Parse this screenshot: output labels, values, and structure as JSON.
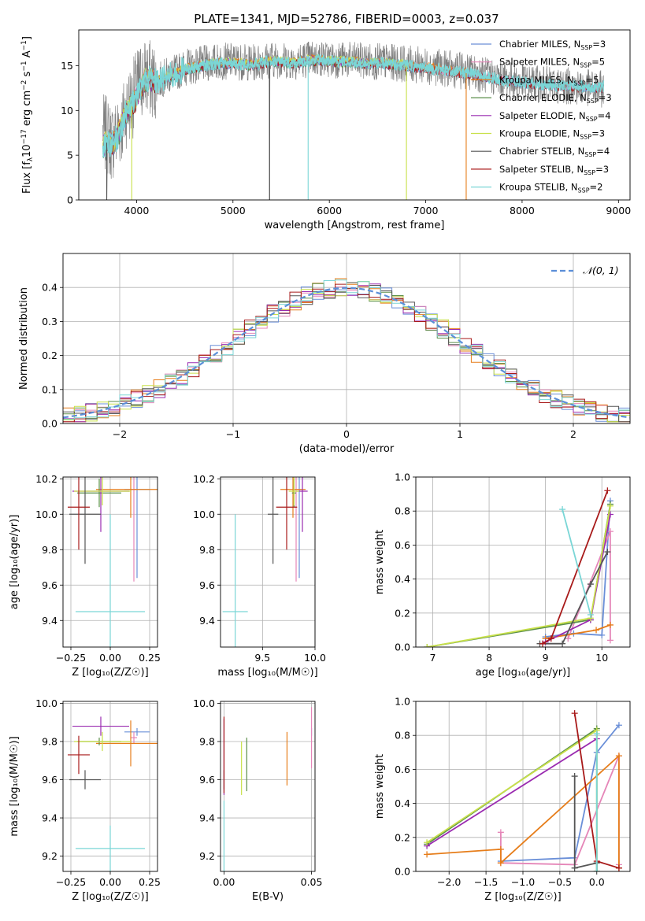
{
  "title": "PLATE=1341, MJD=52786, FIBERID=0003, z=0.037",
  "colors": {
    "Chabrier MILES": "#6a8fd8",
    "Salpeter MILES": "#e586b8",
    "Kroupa MILES": "#e67d1a",
    "Chabrier ELODIE": "#5b8f4a",
    "Salpeter ELODIE": "#9a2bb0",
    "Kroupa ELODIE": "#c8e04a",
    "Chabrier STELIB": "#555555",
    "Salpeter STELIB": "#a81a1a",
    "Kroupa STELIB": "#7ad6d6"
  },
  "chart_data": [
    {
      "id": "spectrum",
      "type": "line",
      "title": "PLATE=1341, MJD=52786, FIBERID=0003, z=0.037",
      "xlabel": "wavelength [Angstrom, rest frame]",
      "ylabel_parts": [
        "Flux [f",
        "λ",
        "10",
        "−17",
        " erg cm",
        "−2",
        " s",
        "−1",
        " A",
        "−1",
        "]"
      ],
      "xlim": [
        3400,
        9120
      ],
      "ylim": [
        0,
        19
      ],
      "xticks": [
        4000,
        5000,
        6000,
        7000,
        8000,
        9000
      ],
      "yticks": [
        0,
        5,
        10,
        15
      ],
      "grid": false,
      "legend_position": "upper-right",
      "legend": [
        {
          "label": "Chabrier MILES, N",
          "sub": "SSP",
          "suffix": "=3"
        },
        {
          "label": "Salpeter MILES, N",
          "sub": "SSP",
          "suffix": "=5"
        },
        {
          "label": "Kroupa MILES, N",
          "sub": "SSP",
          "suffix": "=5"
        },
        {
          "label": "Chabrier ELODIE, N",
          "sub": "SSP",
          "suffix": "=3"
        },
        {
          "label": "Salpeter ELODIE, N",
          "sub": "SSP",
          "suffix": "=4"
        },
        {
          "label": "Kroupa ELODIE, N",
          "sub": "SSP",
          "suffix": "=3"
        },
        {
          "label": "Chabrier STELIB, N",
          "sub": "SSP",
          "suffix": "=4"
        },
        {
          "label": "Salpeter STELIB, N",
          "sub": "SSP",
          "suffix": "=3"
        },
        {
          "label": "Kroupa STELIB, N",
          "sub": "SSP",
          "suffix": "=2"
        }
      ],
      "data_x": [
        3650,
        3700,
        3750,
        3800,
        3850,
        3900,
        3950,
        4000,
        4050,
        4100,
        4200,
        4300,
        4400,
        4500,
        4600,
        4700,
        4800,
        4900,
        5000,
        5100,
        5200,
        5300,
        5400,
        5500,
        5600,
        5700,
        5800,
        5900,
        6000,
        6200,
        6400,
        6600,
        6800,
        7000,
        7200,
        7400,
        7600,
        7800,
        8000,
        8200,
        8400,
        8600,
        8800
      ],
      "data_y": [
        7.5,
        7.0,
        6.5,
        7.5,
        8.5,
        10.5,
        11.0,
        12.5,
        13.5,
        13.8,
        13.0,
        13.8,
        14.2,
        14.8,
        15.0,
        15.2,
        15.4,
        15.5,
        15.5,
        15.4,
        15.3,
        15.5,
        15.7,
        15.6,
        15.5,
        15.6,
        15.8,
        15.8,
        15.7,
        15.6,
        15.5,
        15.4,
        15.2,
        15.0,
        14.7,
        14.4,
        14.0,
        13.5,
        13.2,
        12.9,
        12.8,
        12.6,
        12.4
      ],
      "model_x": [
        3650,
        3700,
        3750,
        3800,
        3850,
        3900,
        3950,
        4000,
        4050,
        4100,
        4200,
        4300,
        4400,
        4500,
        4600,
        4700,
        4800,
        4900,
        5000,
        5100,
        5200,
        5300,
        5400,
        5500,
        5600,
        5700,
        5800,
        5900,
        6000,
        6200,
        6400,
        6600,
        6800,
        7000,
        7200,
        7400,
        7600,
        7800,
        8000,
        8200,
        8400,
        8600,
        8800
      ],
      "model_y": [
        6.0,
        6.5,
        6.2,
        7.0,
        8.5,
        10.0,
        10.5,
        11.5,
        12.8,
        13.5,
        13.2,
        13.6,
        14.0,
        14.6,
        14.8,
        15.0,
        15.2,
        15.3,
        15.3,
        15.2,
        15.1,
        15.3,
        15.5,
        15.4,
        15.3,
        15.4,
        15.6,
        15.6,
        15.5,
        15.4,
        15.3,
        15.2,
        15.0,
        14.8,
        14.5,
        14.2,
        13.8,
        13.4,
        13.1,
        12.9,
        12.8,
        12.7,
        12.6
      ],
      "mask_drops": [
        {
          "x": 3690,
          "series": "Chabrier STELIB"
        },
        {
          "x": 3950,
          "series": "Kroupa ELODIE"
        },
        {
          "x": 5380,
          "series": "Chabrier STELIB"
        },
        {
          "x": 5780,
          "series": "Kroupa STELIB"
        },
        {
          "x": 6800,
          "series": "Kroupa ELODIE"
        },
        {
          "x": 7420,
          "series": "Kroupa MILES"
        }
      ]
    },
    {
      "id": "residuals",
      "type": "histogram",
      "xlabel": "(data-model)/error",
      "ylabel": "Normed distribution",
      "xlim": [
        -2.5,
        2.5
      ],
      "ylim": [
        0,
        0.5
      ],
      "xticks": [
        -2,
        -1,
        0,
        1,
        2
      ],
      "yticks": [
        0.0,
        0.1,
        0.2,
        0.3,
        0.4
      ],
      "grid": true,
      "legend_position": "upper-right",
      "legend": [
        "𝒩(0, 1)"
      ],
      "bin_width": 0.1,
      "bin_start": -2.5,
      "reference_curve": "gaussian mean 0 sigma 1",
      "histogram_note": "nine overlapping step histograms, one per model"
    },
    {
      "id": "age-vs-Z",
      "type": "scatter",
      "xlabel": "Z [log₁₀(Z/Z☉)]",
      "ylabel": "age  [log₁₀(age/yr)]",
      "xlim": [
        -0.3,
        0.3
      ],
      "ylim": [
        9.25,
        10.21
      ],
      "xticks": [
        -0.25,
        0.0,
        0.25
      ],
      "yticks": [
        9.4,
        9.6,
        9.8,
        10.0,
        10.2
      ],
      "grid": true,
      "points": [
        {
          "series": "Chabrier MILES",
          "x": 0.17,
          "y": 10.14,
          "xerr": 0.08,
          "yerr": 0.5
        },
        {
          "series": "Salpeter MILES",
          "x": 0.15,
          "y": 10.14,
          "xerr": 0.02,
          "yerr": 0.52
        },
        {
          "series": "Kroupa MILES",
          "x": 0.13,
          "y": 10.14,
          "xerr": 0.22,
          "yerr": 0.16
        },
        {
          "series": "Chabrier ELODIE",
          "x": -0.07,
          "y": 10.12,
          "xerr": 0.14,
          "yerr": 0.08
        },
        {
          "series": "Salpeter ELODIE",
          "x": -0.06,
          "y": 10.13,
          "xerr": 0.18,
          "yerr": 0.23
        },
        {
          "series": "Kroupa ELODIE",
          "x": -0.05,
          "y": 10.13,
          "xerr": 0.18,
          "yerr": 0.08
        },
        {
          "series": "Chabrier STELIB",
          "x": -0.16,
          "y": 10.0,
          "xerr": 0.1,
          "yerr": 0.28
        },
        {
          "series": "Salpeter STELIB",
          "x": -0.2,
          "y": 10.04,
          "xerr": 0.07,
          "yerr": 0.24
        },
        {
          "series": "Kroupa STELIB",
          "x": 0.0,
          "y": 9.45,
          "xerr": 0.22,
          "yerr": 0.55
        }
      ]
    },
    {
      "id": "age-vs-mass",
      "type": "scatter",
      "xlabel": "mass [log₁₀(M/M☉)]",
      "ylabel": "",
      "xlim": [
        9.1,
        10.0
      ],
      "ylim": [
        9.25,
        10.21
      ],
      "xticks": [
        9.5,
        10.0
      ],
      "yticks": [
        9.4,
        9.6,
        9.8,
        10.0,
        10.2
      ],
      "grid": true,
      "points": [
        {
          "series": "Chabrier MILES",
          "x": 9.85,
          "y": 10.14,
          "xerr": 0.02,
          "yerr": 0.5
        },
        {
          "series": "Salpeter MILES",
          "x": 9.82,
          "y": 10.14,
          "xerr": 0.03,
          "yerr": 0.52
        },
        {
          "series": "Kroupa MILES",
          "x": 9.79,
          "y": 10.14,
          "xerr": 0.12,
          "yerr": 0.16
        },
        {
          "series": "Chabrier ELODIE",
          "x": 9.8,
          "y": 10.12,
          "xerr": 0.02,
          "yerr": 0.08
        },
        {
          "series": "Salpeter ELODIE",
          "x": 9.88,
          "y": 10.13,
          "xerr": 0.05,
          "yerr": 0.23
        },
        {
          "series": "Kroupa ELODIE",
          "x": 9.8,
          "y": 10.13,
          "xerr": 0.05,
          "yerr": 0.08
        },
        {
          "series": "Chabrier STELIB",
          "x": 9.6,
          "y": 10.0,
          "xerr": 0.05,
          "yerr": 0.28
        },
        {
          "series": "Salpeter STELIB",
          "x": 9.73,
          "y": 10.04,
          "xerr": 0.1,
          "yerr": 0.24
        },
        {
          "series": "Kroupa STELIB",
          "x": 9.24,
          "y": 9.45,
          "xerr": 0.12,
          "yerr": 0.55
        }
      ]
    },
    {
      "id": "massweight-vs-age",
      "type": "line",
      "xlabel": "age  [log₁₀(age/yr)]",
      "ylabel": "mass weight",
      "xlim": [
        6.7,
        10.5
      ],
      "ylim": [
        0,
        1
      ],
      "xticks": [
        7,
        8,
        9,
        10
      ],
      "yticks": [
        0.0,
        0.2,
        0.4,
        0.6,
        0.8,
        1.0
      ],
      "grid": true,
      "series": [
        {
          "name": "Chabrier MILES",
          "x": [
            9.0,
            9.5,
            10.0,
            10.15
          ],
          "y": [
            0.06,
            0.08,
            0.07,
            0.86
          ]
        },
        {
          "name": "Salpeter MILES",
          "x": [
            9.4,
            10.15,
            10.15
          ],
          "y": [
            0.05,
            0.68,
            0.04
          ]
        },
        {
          "name": "Kroupa MILES",
          "x": [
            9.0,
            9.9,
            10.15
          ],
          "y": [
            0.05,
            0.1,
            0.13
          ]
        },
        {
          "name": "Chabrier ELODIE",
          "x": [
            6.9,
            9.8,
            10.15
          ],
          "y": [
            0.0,
            0.16,
            0.84
          ]
        },
        {
          "name": "Salpeter ELODIE",
          "x": [
            9.0,
            9.8,
            10.15
          ],
          "y": [
            0.03,
            0.16,
            0.78
          ]
        },
        {
          "name": "Kroupa ELODIE",
          "x": [
            6.9,
            9.8,
            10.15
          ],
          "y": [
            0.0,
            0.17,
            0.83
          ]
        },
        {
          "name": "Chabrier STELIB",
          "x": [
            8.9,
            9.3,
            9.8,
            10.1
          ],
          "y": [
            0.02,
            0.02,
            0.37,
            0.56
          ]
        },
        {
          "name": "Salpeter STELIB",
          "x": [
            8.95,
            9.1,
            10.1
          ],
          "y": [
            0.02,
            0.05,
            0.92
          ]
        },
        {
          "name": "Kroupa STELIB",
          "x": [
            9.3,
            9.8
          ],
          "y": [
            0.81,
            0.19
          ]
        }
      ]
    },
    {
      "id": "mass-vs-Z",
      "type": "scatter",
      "xlabel": "Z [log₁₀(Z/Z☉)]",
      "ylabel": "mass [log₁₀(M/M☉)]",
      "xlim": [
        -0.3,
        0.3
      ],
      "ylim": [
        9.12,
        10.01
      ],
      "xticks": [
        -0.25,
        0.0,
        0.25
      ],
      "yticks": [
        9.2,
        9.4,
        9.6,
        9.8,
        10.0
      ],
      "grid": true,
      "points": [
        {
          "series": "Chabrier MILES",
          "x": 0.17,
          "y": 9.85,
          "xerr": 0.08,
          "yerr": 0.02
        },
        {
          "series": "Salpeter MILES",
          "x": 0.15,
          "y": 9.82,
          "xerr": 0.02,
          "yerr": 0.03
        },
        {
          "series": "Kroupa MILES",
          "x": 0.13,
          "y": 9.79,
          "xerr": 0.22,
          "yerr": 0.12
        },
        {
          "series": "Chabrier ELODIE",
          "x": -0.07,
          "y": 9.8,
          "xerr": 0.14,
          "yerr": 0.02
        },
        {
          "series": "Salpeter ELODIE",
          "x": -0.06,
          "y": 9.88,
          "xerr": 0.18,
          "yerr": 0.05
        },
        {
          "series": "Kroupa ELODIE",
          "x": -0.05,
          "y": 9.8,
          "xerr": 0.18,
          "yerr": 0.05
        },
        {
          "series": "Chabrier STELIB",
          "x": -0.16,
          "y": 9.6,
          "xerr": 0.1,
          "yerr": 0.05
        },
        {
          "series": "Salpeter STELIB",
          "x": -0.2,
          "y": 9.73,
          "xerr": 0.07,
          "yerr": 0.1
        },
        {
          "series": "Kroupa STELIB",
          "x": 0.0,
          "y": 9.24,
          "xerr": 0.22,
          "yerr": 0.12
        }
      ]
    },
    {
      "id": "mass-vs-ebv",
      "type": "scatter",
      "xlabel": "E(B-V)",
      "ylabel": "",
      "xlim": [
        -0.002,
        0.052
      ],
      "ylim": [
        9.12,
        10.01
      ],
      "xticks": [
        0.0,
        0.05
      ],
      "yticks": [
        9.2,
        9.4,
        9.6,
        9.8,
        10.0
      ],
      "grid": true,
      "points": [
        {
          "series": "Chabrier MILES",
          "x": 0.05,
          "y": 9.85,
          "xerr": 0,
          "yerr": 0.02
        },
        {
          "series": "Salpeter MILES",
          "x": 0.05,
          "y": 9.82,
          "xerr": 0,
          "yerr": 0.16
        },
        {
          "series": "Kroupa MILES",
          "x": 0.036,
          "y": 9.71,
          "xerr": 0,
          "yerr": 0.14
        },
        {
          "series": "Chabrier ELODIE",
          "x": 0.013,
          "y": 9.68,
          "xerr": 0,
          "yerr": 0.14
        },
        {
          "series": "Salpeter ELODIE",
          "x": 0.0,
          "y": 9.72,
          "xerr": 0,
          "yerr": 0.2
        },
        {
          "series": "Kroupa ELODIE",
          "x": 0.01,
          "y": 9.66,
          "xerr": 0,
          "yerr": 0.14
        },
        {
          "series": "Chabrier STELIB",
          "x": 0.0,
          "y": 9.6,
          "xerr": 0,
          "yerr": 0.05
        },
        {
          "series": "Salpeter STELIB",
          "x": 0.0,
          "y": 9.73,
          "xerr": 0,
          "yerr": 0.2
        },
        {
          "series": "Kroupa STELIB",
          "x": 0.0,
          "y": 9.24,
          "xerr": 0,
          "yerr": 0.25
        }
      ]
    },
    {
      "id": "massweight-vs-Z",
      "type": "line",
      "xlabel": "Z [log₁₀(Z/Z☉)]",
      "ylabel": "mass weight",
      "xlim": [
        -2.45,
        0.45
      ],
      "ylim": [
        0,
        1
      ],
      "xticks": [
        -2.0,
        -1.5,
        -1.0,
        -0.5,
        0.0
      ],
      "yticks": [
        0.0,
        0.2,
        0.4,
        0.6,
        0.8,
        1.0
      ],
      "grid": true,
      "series": [
        {
          "name": "Chabrier MILES",
          "x": [
            -1.3,
            -0.3,
            0.0,
            0.3
          ],
          "y": [
            0.06,
            0.08,
            0.7,
            0.86
          ]
        },
        {
          "name": "Salpeter MILES",
          "x": [
            -1.3,
            -1.3,
            -0.3,
            0.3,
            0.3
          ],
          "y": [
            0.23,
            0.05,
            0.04,
            0.68,
            0.04
          ]
        },
        {
          "name": "Kroupa MILES",
          "x": [
            -2.3,
            -1.3,
            -1.3,
            0.3,
            0.3
          ],
          "y": [
            0.1,
            0.13,
            0.05,
            0.68,
            0.02
          ]
        },
        {
          "name": "Chabrier ELODIE",
          "x": [
            -2.3,
            0.0,
            0.0
          ],
          "y": [
            0.16,
            0.84,
            0.0
          ]
        },
        {
          "name": "Salpeter ELODIE",
          "x": [
            -2.3,
            0.0
          ],
          "y": [
            0.15,
            0.78
          ]
        },
        {
          "name": "Kroupa ELODIE",
          "x": [
            -2.3,
            0.0,
            0.0
          ],
          "y": [
            0.17,
            0.83,
            0.0
          ]
        },
        {
          "name": "Chabrier STELIB",
          "x": [
            -0.3,
            -0.3,
            0.0,
            0.0
          ],
          "y": [
            0.56,
            0.02,
            0.05,
            0.0
          ]
        },
        {
          "name": "Salpeter STELIB",
          "x": [
            -0.3,
            0.0,
            0.3
          ],
          "y": [
            0.93,
            0.06,
            0.02
          ]
        },
        {
          "name": "Kroupa STELIB",
          "x": [
            0.0,
            0.0
          ],
          "y": [
            0.81,
            0.0
          ]
        }
      ]
    }
  ]
}
